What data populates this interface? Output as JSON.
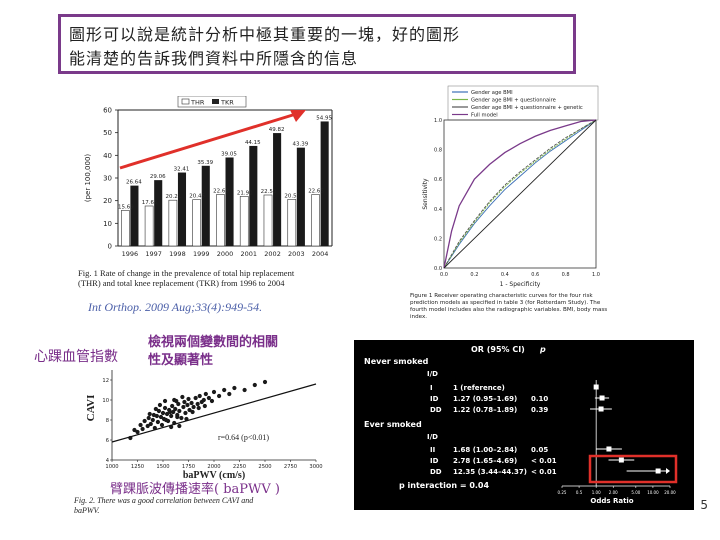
{
  "headline": {
    "line1": "圖形可以說是統計分析中極其重要的一塊，好的圖形",
    "line2": "能清楚的告訴我們資料中所隱含的信息"
  },
  "bar_figure": {
    "legend": [
      "THR",
      "TKR"
    ],
    "ylabel": "(per 100,000)",
    "caption1": "Fig. 1  Rate of change in the prevalence of total hip replacement",
    "caption2": "(THR) and total knee replacement (TKR) from 1996 to 2004"
  },
  "citation": "Int Orthop. 2009 Aug;33(4):949-54.",
  "roc_figure": {
    "legend": [
      "Gender age BMI",
      "Gender age BMI + questionnaire",
      "Gender age BMI + questionnaire + genetic",
      "Full model"
    ],
    "ylabel": "Sensitivity",
    "xlabel": "1 - Specificity",
    "caption1": "Figure 1  Receiver operating characteristic curves for the four risk",
    "caption2": "prediction models as specified in table 3 (for Rotterdam Study). The",
    "caption3": "fourth model includes also the radiographic variables. BMI, body mass",
    "caption4": "index."
  },
  "scatter_figure": {
    "note1": "檢視兩個變數間的相關",
    "note2": "性及顯著性",
    "y_label_cn": "心踝血管指數",
    "y_axis": "CAVI",
    "x_axis": "baPWV (cm/s)",
    "x_label_cn": "臂踝脈波傳播速率( baPWV )",
    "r_text": "r=0.64 (p<0.01)",
    "caption1": "Fig. 2. There was a good correlation between CAVI and",
    "caption2": "baPWV."
  },
  "forest_figure": {
    "col_or": "OR (95%  CI)",
    "col_p": "p",
    "never": "Never smoked",
    "ever": "Ever smoked",
    "header_ii": "I/D",
    "interaction": "p interaction = 0.04",
    "xlabel": "Odds Ratio"
  },
  "slide_number": "5",
  "chart_data": [
    {
      "type": "bar",
      "title": "",
      "categories": [
        "1996",
        "1997",
        "1998",
        "1999",
        "2000",
        "2001",
        "2002",
        "2003",
        "2004"
      ],
      "series": [
        {
          "name": "THR",
          "values": [
            15.69,
            17.65,
            20.21,
            20.45,
            22.69,
            21.9,
            22.5,
            20.57,
            22.65
          ]
        },
        {
          "name": "TKR",
          "values": [
            26.64,
            29.06,
            32.41,
            35.39,
            39.05,
            44.15,
            49.82,
            43.39,
            54.95
          ]
        }
      ],
      "labels": {
        "THR": [
          "15.69",
          "17.65",
          "20.21",
          "20.45",
          "22.69",
          "21.90",
          "22.50",
          "20.57",
          "22.65"
        ],
        "TKR": [
          "26.64",
          "29.06",
          "32.41",
          "35.39",
          "39.05",
          "44.15",
          "49.82",
          "43.39",
          "54.95"
        ]
      },
      "yticks": [
        "0",
        "10",
        "20",
        "30",
        "40",
        "50",
        "60"
      ],
      "ylim": [
        0,
        60
      ],
      "xlabel": "",
      "ylabel": "(per 100,000)"
    },
    {
      "type": "line",
      "title": "",
      "xlabel": "1 - Specificity",
      "ylabel": "Sensitivity",
      "xlim": [
        0,
        1
      ],
      "ylim": [
        0,
        1
      ],
      "xticks": [
        "0.0",
        "0.2",
        "0.4",
        "0.6",
        "0.8",
        "1.0"
      ],
      "yticks": [
        "0.0",
        "0.2",
        "0.4",
        "0.6",
        "0.8",
        "1.0"
      ],
      "series": [
        {
          "name": "Gender age BMI",
          "color": "#3b6fb6",
          "x": [
            0,
            0.1,
            0.2,
            0.3,
            0.4,
            0.5,
            0.6,
            0.7,
            0.8,
            0.9,
            1
          ],
          "y": [
            0,
            0.16,
            0.3,
            0.42,
            0.53,
            0.62,
            0.71,
            0.79,
            0.86,
            0.93,
            1
          ]
        },
        {
          "name": "Gender age BMI + questionnaire",
          "color": "#7ab648",
          "x": [
            0,
            0.1,
            0.2,
            0.3,
            0.4,
            0.5,
            0.6,
            0.7,
            0.8,
            0.9,
            1
          ],
          "y": [
            0,
            0.17,
            0.31,
            0.44,
            0.55,
            0.64,
            0.72,
            0.8,
            0.87,
            0.94,
            1
          ]
        },
        {
          "name": "Gender age BMI + questionnaire + genetic",
          "color": "#555555",
          "x": [
            0,
            0.1,
            0.2,
            0.3,
            0.4,
            0.5,
            0.6,
            0.7,
            0.8,
            0.9,
            1
          ],
          "y": [
            0,
            0.18,
            0.32,
            0.45,
            0.56,
            0.65,
            0.73,
            0.81,
            0.88,
            0.94,
            1
          ]
        },
        {
          "name": "Full model",
          "color": "#7a3a8a",
          "x": [
            0,
            0.05,
            0.1,
            0.2,
            0.3,
            0.4,
            0.5,
            0.6,
            0.7,
            0.8,
            0.9,
            1
          ],
          "y": [
            0,
            0.25,
            0.42,
            0.6,
            0.7,
            0.78,
            0.84,
            0.89,
            0.93,
            0.96,
            0.99,
            1
          ]
        },
        {
          "name": "reference",
          "color": "#222222",
          "x": [
            0,
            1
          ],
          "y": [
            0,
            1
          ]
        }
      ]
    },
    {
      "type": "scatter",
      "title": "",
      "xlabel": "baPWV (cm/s)",
      "ylabel": "CAVI",
      "xlim": [
        1000,
        3000
      ],
      "ylim": [
        4,
        13
      ],
      "xticks": [
        "1000",
        "1250",
        "1500",
        "1750",
        "2000",
        "2250",
        "2500",
        "2750",
        "3000"
      ],
      "yticks": [
        "4",
        "6",
        "8",
        "10",
        "12"
      ],
      "fit": {
        "x": [
          1000,
          3000
        ],
        "y": [
          5.8,
          11.6
        ]
      },
      "points": {
        "x": [
          1180,
          1220,
          1250,
          1280,
          1300,
          1320,
          1350,
          1360,
          1380,
          1400,
          1410,
          1420,
          1440,
          1450,
          1460,
          1480,
          1490,
          1500,
          1510,
          1520,
          1540,
          1550,
          1560,
          1580,
          1590,
          1600,
          1610,
          1620,
          1640,
          1650,
          1660,
          1680,
          1700,
          1710,
          1720,
          1740,
          1750,
          1760,
          1780,
          1800,
          1820,
          1840,
          1860,
          1880,
          1900,
          1920,
          1950,
          1980,
          2000,
          2050,
          2100,
          2150,
          2200,
          2300,
          2400,
          2500,
          1530,
          1570,
          1630,
          1690,
          1470,
          1430,
          1370,
          1610,
          1660,
          1730,
          1790,
          1850,
          1910,
          1520,
          1580,
          1640
        ],
        "y": [
          6.2,
          7.0,
          6.8,
          7.5,
          7.1,
          7.9,
          7.4,
          8.2,
          7.6,
          8.0,
          8.5,
          7.2,
          8.4,
          7.8,
          8.9,
          8.3,
          7.5,
          8.7,
          8.1,
          9.2,
          8.6,
          7.9,
          9.0,
          8.4,
          9.4,
          8.8,
          7.7,
          9.1,
          8.5,
          9.6,
          8.9,
          8.2,
          9.3,
          9.8,
          8.7,
          9.5,
          10.1,
          9.0,
          9.7,
          9.3,
          10.2,
          9.6,
          10.4,
          9.8,
          10.0,
          10.6,
          10.2,
          9.9,
          10.8,
          10.4,
          11.0,
          10.6,
          11.2,
          11.0,
          11.5,
          11.8,
          8.0,
          8.8,
          9.9,
          10.3,
          9.5,
          9.1,
          8.6,
          10.0,
          7.4,
          8.1,
          8.8,
          9.2,
          9.4,
          9.9,
          7.3,
          8.3
        ]
      },
      "annotation": "r=0.64 (p<0.01)"
    },
    {
      "type": "forest",
      "title": "",
      "xlabel": "Odds Ratio",
      "xticks": [
        "0.25",
        "0.5",
        "1.00",
        "2.00",
        "5.00",
        "10.00",
        "20.00"
      ],
      "rows": [
        {
          "group": "Never smoked",
          "ii": "I",
          "or_text": "1 (reference)",
          "p": "",
          "or": 1.0,
          "lo": 1.0,
          "hi": 1.0
        },
        {
          "group": "Never smoked",
          "ii": "ID",
          "or_text": "1.27 (0.95–1.69)",
          "p": "0.10",
          "or": 1.27,
          "lo": 0.95,
          "hi": 1.69
        },
        {
          "group": "Never smoked",
          "ii": "DD",
          "or_text": "1.22 (0.78–1.89)",
          "p": "0.39",
          "or": 1.22,
          "lo": 0.78,
          "hi": 1.89
        },
        {
          "group": "Ever smoked",
          "ii": "II",
          "or_text": "1.68 (1.00–2.84)",
          "p": "0.05",
          "or": 1.68,
          "lo": 1.0,
          "hi": 2.84
        },
        {
          "group": "Ever smoked",
          "ii": "ID",
          "or_text": "2.78 (1.65–4.69)",
          "p": "< 0.01",
          "or": 2.78,
          "lo": 1.65,
          "hi": 4.69
        },
        {
          "group": "Ever smoked",
          "ii": "DD",
          "or_text": "12.35 (3.44–44.37)",
          "p": "< 0.01",
          "or": 12.35,
          "lo": 3.44,
          "hi": 44.37
        }
      ]
    }
  ]
}
